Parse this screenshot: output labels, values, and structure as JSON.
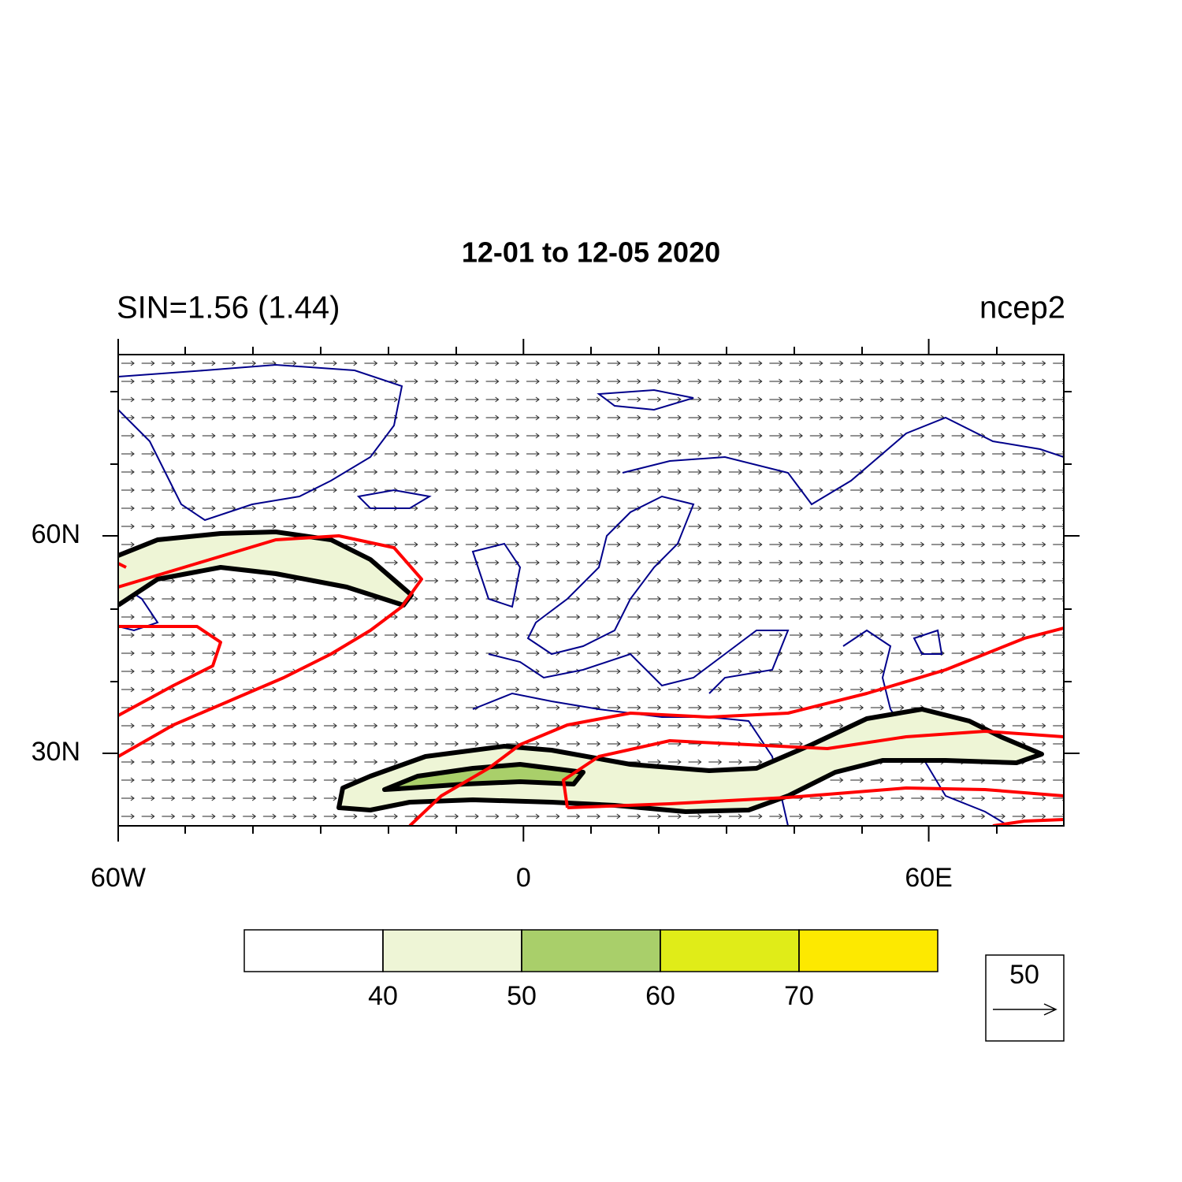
{
  "title": "12-01 to 12-05 2020",
  "left_string": "SIN=1.56 (1.44)",
  "right_string": "ncep2",
  "map": {
    "lon_range": [
      -60,
      80
    ],
    "lat_range": [
      20,
      85
    ],
    "lon_ticks": [
      {
        "value": -60,
        "label": "60W"
      },
      0,
      {
        "value": 60,
        "label": "60E"
      }
    ],
    "lat_ticks": [
      {
        "value": 30,
        "label": "30N"
      },
      {
        "value": 60,
        "label": "60N"
      }
    ]
  },
  "colorbar": {
    "levels": [
      40,
      50,
      60,
      70
    ],
    "colors": [
      "#ffffff",
      "#eef5d6",
      "#a9cf6a",
      "#e0ec18",
      "#fde900"
    ]
  },
  "reference_vector": {
    "magnitude": 50
  }
}
